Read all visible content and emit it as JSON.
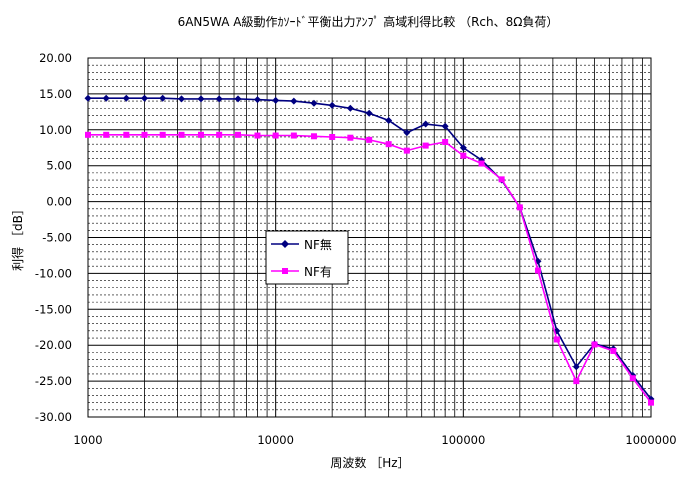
{
  "chart_data": {
    "type": "line",
    "title": "6AN5WA  A級動作ｶｿｰﾄﾞ平衡出力ｱﾝﾌﾟ  高域利得比較 （Rch、8Ω負荷）",
    "xlabel": "周波数 ［Hz］",
    "ylabel": "利得 ［dB］",
    "x_scale": "log",
    "xlim": [
      1000,
      1000000
    ],
    "ylim": [
      -30,
      20
    ],
    "x_ticks": [
      1000,
      10000,
      100000,
      1000000
    ],
    "x_tick_labels": [
      "1000",
      "10000",
      "100000",
      "1000000"
    ],
    "y_ticks": [
      20,
      15,
      10,
      5,
      0,
      -5,
      -10,
      -15,
      -20,
      -25,
      -30
    ],
    "y_tick_labels": [
      "20.00",
      "15.00",
      "10.00",
      "5.00",
      "0.00",
      "-5.00",
      "-10.00",
      "-15.00",
      "-20.00",
      "-25.00",
      "-30.00"
    ],
    "grid": true,
    "legend_position": "center-left",
    "series": [
      {
        "name": "NF無",
        "color": "#000080",
        "marker": "diamond",
        "x": [
          1000,
          1250,
          1600,
          2000,
          2500,
          3150,
          4000,
          5000,
          6300,
          8000,
          10000,
          12500,
          16000,
          20000,
          25000,
          31500,
          40000,
          50000,
          63000,
          80000,
          100000,
          125000,
          160000,
          200000,
          250000,
          315000,
          400000,
          500000,
          630000,
          800000,
          1000000
        ],
        "y": [
          14.4,
          14.4,
          14.4,
          14.4,
          14.4,
          14.3,
          14.3,
          14.3,
          14.3,
          14.2,
          14.1,
          14.0,
          13.7,
          13.4,
          13.0,
          12.3,
          11.3,
          9.6,
          10.8,
          10.5,
          7.5,
          5.8,
          3.0,
          -0.8,
          -8.3,
          -18.0,
          -23.0,
          -19.8,
          -20.5,
          -24.2,
          -27.5
        ]
      },
      {
        "name": "NF有",
        "color": "#FF00FF",
        "marker": "square",
        "x": [
          1000,
          1250,
          1600,
          2000,
          2500,
          3150,
          4000,
          5000,
          6300,
          8000,
          10000,
          12500,
          16000,
          20000,
          25000,
          31500,
          40000,
          50000,
          63000,
          80000,
          100000,
          125000,
          160000,
          200000,
          250000,
          315000,
          400000,
          500000,
          630000,
          800000,
          1000000
        ],
        "y": [
          9.3,
          9.3,
          9.3,
          9.3,
          9.3,
          9.3,
          9.3,
          9.3,
          9.3,
          9.2,
          9.2,
          9.2,
          9.1,
          9.0,
          8.9,
          8.6,
          8.0,
          7.1,
          7.8,
          8.3,
          6.4,
          5.3,
          3.1,
          -0.8,
          -9.6,
          -19.2,
          -25.0,
          -19.9,
          -20.8,
          -24.6,
          -28.0
        ]
      }
    ]
  }
}
